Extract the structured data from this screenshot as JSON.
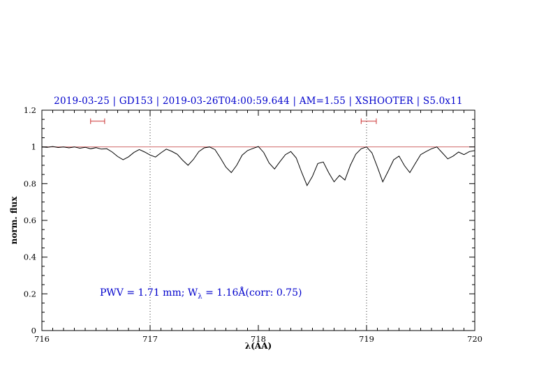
{
  "title": "2019-03-25 | GD153 | 2019-03-26T04:00:59.644 | AM=1.55 | XSHOOTER | S5.0x11",
  "annotation": {
    "part1": "PWV = 1.71 mm; W",
    "sub": "λ",
    "part2": " = 1.16Å(corr: 0.75)"
  },
  "colors": {
    "title": "#0000cc",
    "annotation": "#0000cc",
    "spectrum": "#000000",
    "reference_line": "#d06a6a",
    "marker": "#cc3333",
    "dotted_line": "#333333",
    "axis": "#000000"
  },
  "chart_data": {
    "type": "line",
    "title": "2019-03-25 | GD153 | 2019-03-26T04:00:59.644 | AM=1.55 | XSHOOTER | S5.0x11",
    "xlabel": "λ(AA)",
    "ylabel": "norm. flux",
    "xlim": [
      716,
      720
    ],
    "ylim": [
      0,
      1.2
    ],
    "x_ticks": [
      716,
      717,
      718,
      719,
      720
    ],
    "x_tick_labels": [
      "716",
      "717",
      "718",
      "719",
      "720"
    ],
    "y_ticks": [
      0,
      0.2,
      0.4,
      0.6,
      0.8,
      1,
      1.2
    ],
    "y_tick_labels": [
      "0",
      "0.2",
      "0.4",
      "0.6",
      "0.8",
      "1",
      "1.2"
    ],
    "x_minor_step": 0.1,
    "y_minor_step": 0.05,
    "grid": false,
    "legend": false,
    "hline": 1.0,
    "vlines": [
      717,
      719
    ],
    "markers": [
      {
        "x1": 716.45,
        "x2": 716.58,
        "y": 1.14
      },
      {
        "x1": 718.95,
        "x2": 719.09,
        "y": 1.14
      }
    ],
    "series": [
      {
        "name": "normalized spectrum",
        "x": [
          716.0,
          716.05,
          716.1,
          716.15,
          716.2,
          716.25,
          716.3,
          716.35,
          716.4,
          716.45,
          716.5,
          716.55,
          716.6,
          716.65,
          716.7,
          716.75,
          716.8,
          716.85,
          716.9,
          716.95,
          717.0,
          717.05,
          717.1,
          717.15,
          717.2,
          717.25,
          717.3,
          717.35,
          717.4,
          717.45,
          717.5,
          717.55,
          717.6,
          717.65,
          717.7,
          717.75,
          717.8,
          717.85,
          717.9,
          717.95,
          718.0,
          718.05,
          718.1,
          718.15,
          718.2,
          718.25,
          718.3,
          718.35,
          718.4,
          718.45,
          718.5,
          718.55,
          718.6,
          718.65,
          718.7,
          718.75,
          718.8,
          718.85,
          718.9,
          718.95,
          719.0,
          719.05,
          719.1,
          719.15,
          719.2,
          719.25,
          719.3,
          719.35,
          719.4,
          719.45,
          719.5,
          719.55,
          719.6,
          719.65,
          719.7,
          719.75,
          719.8,
          719.85,
          719.9,
          719.95,
          720.0
        ],
        "y": [
          1.0,
          0.998,
          1.002,
          0.997,
          1.0,
          0.995,
          1.0,
          0.993,
          0.998,
          0.99,
          0.996,
          0.988,
          0.99,
          0.972,
          0.948,
          0.93,
          0.946,
          0.97,
          0.986,
          0.972,
          0.956,
          0.945,
          0.968,
          0.988,
          0.976,
          0.96,
          0.928,
          0.9,
          0.932,
          0.975,
          0.995,
          1.0,
          0.985,
          0.94,
          0.89,
          0.86,
          0.9,
          0.955,
          0.98,
          0.992,
          1.002,
          0.97,
          0.912,
          0.88,
          0.92,
          0.958,
          0.975,
          0.94,
          0.862,
          0.79,
          0.84,
          0.91,
          0.918,
          0.86,
          0.81,
          0.845,
          0.82,
          0.9,
          0.96,
          0.99,
          1.0,
          0.968,
          0.89,
          0.81,
          0.868,
          0.93,
          0.95,
          0.898,
          0.86,
          0.91,
          0.958,
          0.975,
          0.99,
          1.0,
          0.968,
          0.935,
          0.95,
          0.972,
          0.958,
          0.975,
          0.98
        ]
      }
    ]
  }
}
